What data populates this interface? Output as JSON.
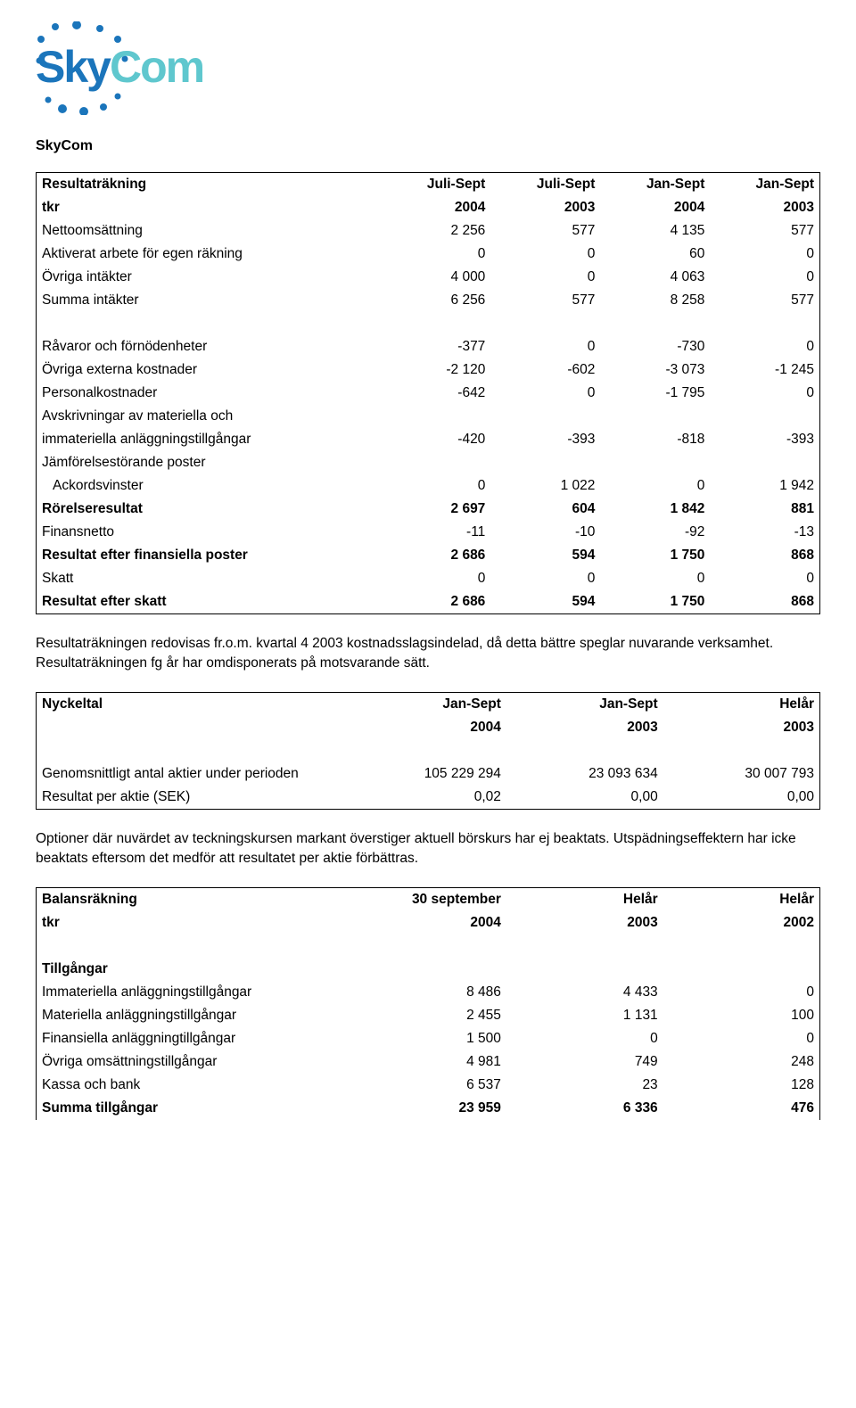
{
  "logo": {
    "text_sky": "Sky",
    "text_com": "Com",
    "color_sky": "#1b75bb",
    "color_com": "#5fc7ce",
    "dot_color": "#1b75bb"
  },
  "company": "SkyCom",
  "income": {
    "header_row1": [
      "Resultaträkning",
      "Juli-Sept",
      "Juli-Sept",
      "Jan-Sept",
      "Jan-Sept"
    ],
    "header_row2": [
      "tkr",
      "2004",
      "2003",
      "2004",
      "2003"
    ],
    "rows": [
      {
        "cells": [
          "Nettoomsättning",
          "2 256",
          "577",
          "4 135",
          "577"
        ]
      },
      {
        "cells": [
          "Aktiverat arbete för egen räkning",
          "0",
          "0",
          "60",
          "0"
        ]
      },
      {
        "cells": [
          "Övriga intäkter",
          "4 000",
          "0",
          "4 063",
          "0"
        ]
      },
      {
        "cells": [
          "Summa intäkter",
          "6 256",
          "577",
          "8 258",
          "577"
        ]
      },
      {
        "spacer": true
      },
      {
        "cells": [
          "Råvaror och förnödenheter",
          "-377",
          "0",
          "-730",
          "0"
        ]
      },
      {
        "cells": [
          "Övriga externa kostnader",
          "-2 120",
          "-602",
          "-3 073",
          "-1 245"
        ]
      },
      {
        "cells": [
          "Personalkostnader",
          "-642",
          "0",
          "-1 795",
          "0"
        ]
      },
      {
        "cells": [
          "Avskrivningar av materiella och",
          "",
          "",
          "",
          ""
        ]
      },
      {
        "cells": [
          "immateriella anläggningstillgångar",
          "-420",
          "-393",
          "-818",
          "-393"
        ]
      },
      {
        "cells": [
          "Jämförelsestörande poster",
          "",
          "",
          "",
          ""
        ]
      },
      {
        "cells": [
          "Ackordsvinster",
          "0",
          "1 022",
          "0",
          "1 942"
        ],
        "indent": true
      },
      {
        "cells": [
          "Rörelseresultat",
          "2 697",
          "604",
          "1 842",
          "881"
        ],
        "bold": true
      },
      {
        "cells": [
          "Finansnetto",
          "-11",
          "-10",
          "-92",
          "-13"
        ]
      },
      {
        "cells": [
          "Resultat efter finansiella poster",
          "2 686",
          "594",
          "1 750",
          "868"
        ],
        "bold": true
      },
      {
        "cells": [
          "Skatt",
          "0",
          "0",
          "0",
          "0"
        ]
      },
      {
        "cells": [
          "Resultat efter skatt",
          "2 686",
          "594",
          "1 750",
          "868"
        ],
        "bold": true
      }
    ]
  },
  "para1": "Resultaträkningen redovisas fr.o.m. kvartal 4 2003 kostnadsslagsindelad, då detta bättre speglar nuvarande verksamhet. Resultaträkningen fg år har omdisponerats på motsvarande sätt.",
  "keyfig": {
    "header_row1": [
      "Nyckeltal",
      "Jan-Sept",
      "Jan-Sept",
      "Helår"
    ],
    "header_row2": [
      "",
      "2004",
      "2003",
      "2003"
    ],
    "rows": [
      {
        "spacer": true
      },
      {
        "cells": [
          "Genomsnittligt antal aktier under perioden",
          "105 229 294",
          "23 093 634",
          "30 007 793"
        ]
      },
      {
        "cells": [
          "Resultat per aktie (SEK)",
          "0,02",
          "0,00",
          "0,00"
        ]
      }
    ]
  },
  "para2": "Optioner där nuvärdet av teckningskursen markant överstiger aktuell börskurs har ej beaktats. Utspädningseffektern har icke beaktats eftersom det medför att resultatet per aktie förbättras.",
  "balance": {
    "header_row1": [
      "Balansräkning",
      "30 september",
      "Helår",
      "Helår"
    ],
    "header_row2": [
      "tkr",
      "2004",
      "2003",
      "2002"
    ],
    "rows": [
      {
        "spacer": true
      },
      {
        "cells": [
          "Tillgångar",
          "",
          "",
          ""
        ],
        "bold": true
      },
      {
        "cells": [
          "Immateriella anläggningstillgångar",
          "8 486",
          "4 433",
          "0"
        ]
      },
      {
        "cells": [
          "Materiella anläggningstillgångar",
          "2 455",
          "1 131",
          "100"
        ]
      },
      {
        "cells": [
          "Finansiella anläggningtillgångar",
          "1 500",
          "0",
          "0"
        ]
      },
      {
        "cells": [
          "Övriga omsättningstillgångar",
          "4 981",
          "749",
          "248"
        ]
      },
      {
        "cells": [
          "Kassa och bank",
          "6 537",
          "23",
          "128"
        ]
      },
      {
        "cells": [
          "Summa tillgångar",
          "23 959",
          "6 336",
          "476"
        ],
        "bold": true
      }
    ],
    "open": true
  }
}
